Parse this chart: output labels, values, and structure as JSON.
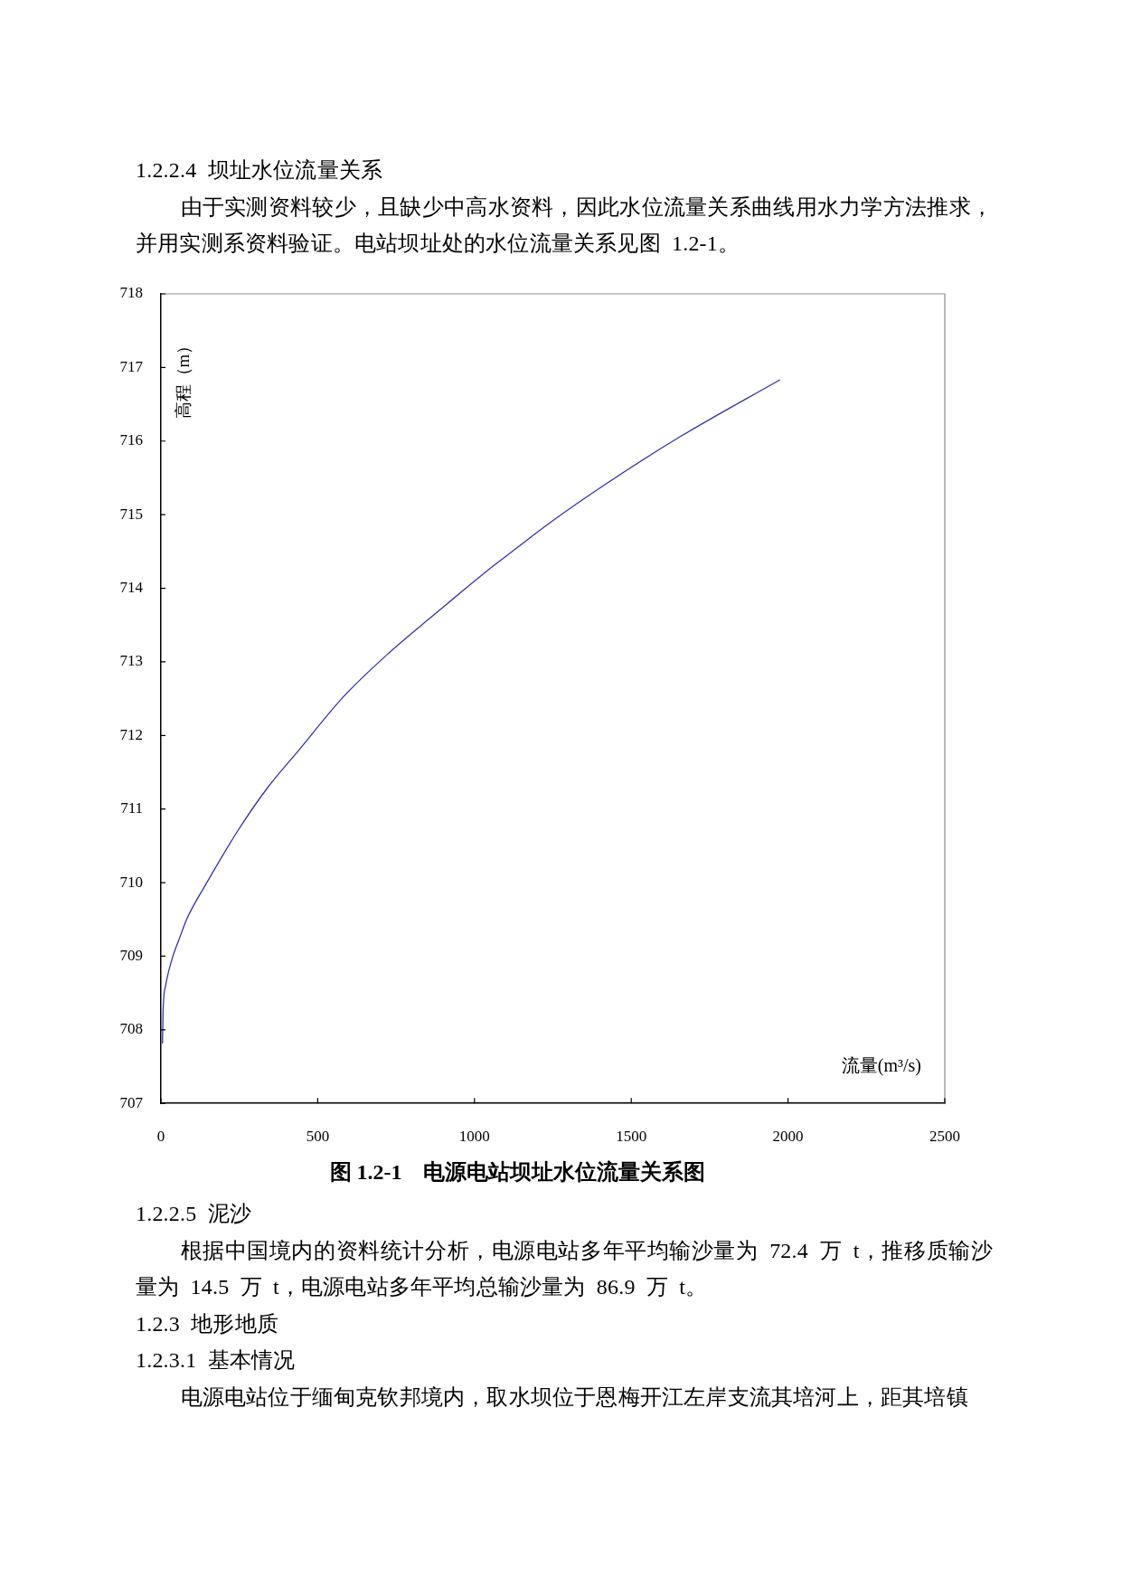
{
  "chart_data": {
    "type": "line",
    "title": "图 1.2-1　电源电站坝址水位流量关系图",
    "xlabel": "流量(m³/s)",
    "ylabel": "高程（m）",
    "x": [
      5,
      7,
      15,
      25,
      39,
      58,
      82,
      145,
      246,
      342,
      438,
      583,
      727,
      871,
      1044,
      1102,
      1247,
      1420,
      1660,
      1973
    ],
    "series": [
      {
        "color": "#3333a8",
        "values": [
          707.82,
          708.27,
          708.6,
          708.8,
          709.01,
          709.23,
          709.5,
          709.99,
          710.71,
          711.3,
          711.79,
          712.53,
          713.12,
          713.64,
          714.25,
          714.44,
          714.91,
          715.42,
          716.07,
          716.83
        ]
      }
    ],
    "xlim": [
      0,
      2500
    ],
    "xticks": [
      0,
      500,
      1000,
      1500,
      2000,
      2500
    ],
    "ylim": [
      707,
      718
    ],
    "yticks": [
      707,
      708,
      709,
      710,
      711,
      712,
      713,
      714,
      715,
      716,
      717,
      718
    ],
    "grid": false,
    "legend": false,
    "marker": "none",
    "line_style": "solid",
    "annotations": [
      "1.2.2.4 坝址水位流量关系",
      "由于实测资料较少，且缺少中高水资料，因此水位流量关系曲线用水力学方法推求，并用实测系资料验证。电站坝址处的水位流量关系见图 1.2-1。",
      "1.2.2.5 泥沙",
      "根据中国境内的资料统计分析，电源电站多年平均输沙量为 72.4 万 t，推移质输沙量为 14.5 万 t，电源电站多年平均总输沙量为 86.9 万 t。",
      "1.2.3 地形地质",
      "1.2.3.1 基本情况",
      "电源电站位于缅甸克钦邦境内，取水坝位于恩梅开江左岸支流其培河上，距其培镇"
    ]
  }
}
